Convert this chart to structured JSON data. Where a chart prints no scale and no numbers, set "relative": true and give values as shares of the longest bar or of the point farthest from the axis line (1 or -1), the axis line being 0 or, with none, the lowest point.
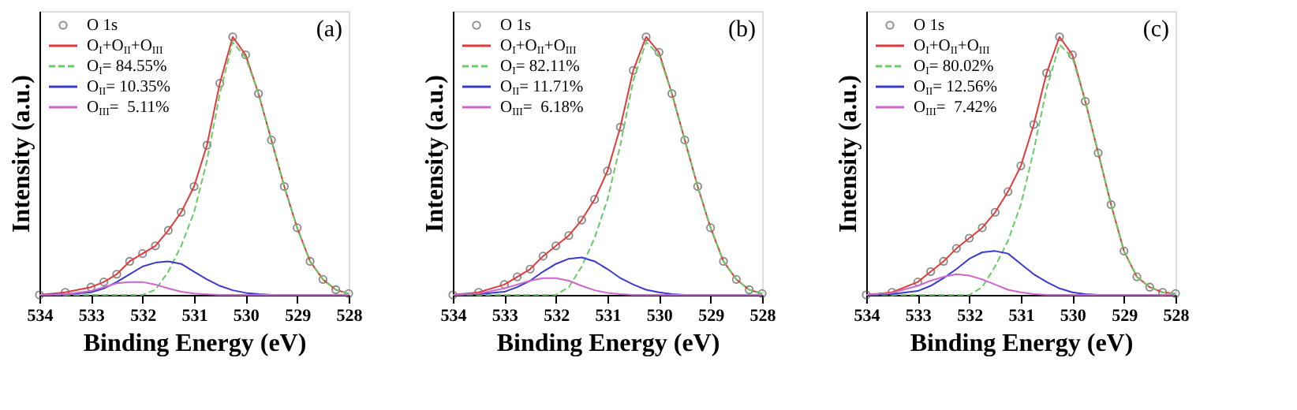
{
  "chart_data": [
    {
      "type": "line",
      "xlabel": "Binding Energy (eV)",
      "ylabel": "Intensity (a.u.)",
      "relative": true,
      "tick_labels": "x",
      "grid": false,
      "legend": "top left",
      "annotations": [
        "(a)"
      ],
      "x": [
        534,
        533.5,
        533,
        532.75,
        532.5,
        532.25,
        532,
        531.75,
        531.5,
        531.25,
        531,
        530.75,
        530.5,
        530.25,
        530,
        529.75,
        529.5,
        529.25,
        529,
        528.75,
        528.5,
        528.25,
        528
      ],
      "xlim": [
        534,
        528
      ],
      "xticks": [
        534,
        533,
        532,
        531,
        530,
        529,
        528
      ],
      "series": [
        {
          "name": "O 1s",
          "type": "scatter",
          "marker": "circle",
          "color": "#555555",
          "values": [
            0,
            0.01,
            0.03,
            0.05,
            0.08,
            0.13,
            0.16,
            0.19,
            0.25,
            0.32,
            0.42,
            0.58,
            0.82,
            1.0,
            0.93,
            0.78,
            0.6,
            0.42,
            0.26,
            0.13,
            0.06,
            0.02,
            0.005
          ]
        },
        {
          "name": "O$_{I}$+O$_{II}$+O$_{III}$",
          "line_style": "solid",
          "color": "#e03a3a",
          "values": [
            0,
            0.01,
            0.03,
            0.05,
            0.08,
            0.13,
            0.16,
            0.19,
            0.25,
            0.32,
            0.42,
            0.58,
            0.82,
            1.0,
            0.93,
            0.78,
            0.6,
            0.42,
            0.26,
            0.13,
            0.06,
            0.02,
            0.005
          ]
        },
        {
          "name": "O$_{I}$= 84.55%",
          "line_style": "dashed",
          "color": "#66cc66",
          "values": [
            0,
            0,
            0,
            0,
            0,
            0,
            0,
            0.02,
            0.09,
            0.19,
            0.32,
            0.52,
            0.78,
            0.98,
            0.92,
            0.78,
            0.6,
            0.42,
            0.26,
            0.13,
            0.06,
            0.02,
            0.005
          ]
        },
        {
          "name": "O$_{II}$= 10.35%",
          "line_style": "solid",
          "color": "#3a3acc",
          "values": [
            0,
            0.002,
            0.01,
            0.025,
            0.05,
            0.08,
            0.11,
            0.125,
            0.13,
            0.12,
            0.09,
            0.06,
            0.035,
            0.018,
            0.008,
            0.003,
            0,
            null,
            null,
            null,
            null,
            null,
            null
          ]
        },
        {
          "name": "O$_{III}$=  5.11%",
          "line_style": "solid",
          "color": "#cc66cc",
          "values": [
            0,
            0.002,
            0.015,
            0.03,
            0.045,
            0.05,
            0.05,
            0.04,
            0.025,
            0.012,
            0.005,
            0.002,
            0,
            0,
            0,
            0,
            0,
            0,
            0,
            0,
            0,
            0,
            0
          ]
        }
      ]
    },
    {
      "type": "line",
      "xlabel": "Binding Energy (eV)",
      "ylabel": "Intensity (a.u.)",
      "relative": true,
      "tick_labels": "x",
      "grid": false,
      "legend": "top left",
      "annotations": [
        "(b)"
      ],
      "x": [
        534,
        533.5,
        533,
        532.75,
        532.5,
        532.25,
        532,
        531.75,
        531.5,
        531.25,
        531,
        530.75,
        530.5,
        530.25,
        530,
        529.75,
        529.5,
        529.25,
        529,
        528.75,
        528.5,
        528.25,
        528
      ],
      "xlim": [
        534,
        528
      ],
      "xticks": [
        534,
        533,
        532,
        531,
        530,
        529,
        528
      ],
      "series": [
        {
          "name": "O 1s",
          "type": "scatter",
          "marker": "circle",
          "color": "#555555",
          "values": [
            0,
            0.01,
            0.04,
            0.07,
            0.1,
            0.15,
            0.19,
            0.23,
            0.29,
            0.37,
            0.48,
            0.65,
            0.87,
            1.0,
            0.94,
            0.78,
            0.6,
            0.42,
            0.26,
            0.13,
            0.06,
            0.02,
            0.005
          ]
        },
        {
          "name": "O$_{I}$+O$_{II}$+O$_{III}$",
          "line_style": "solid",
          "color": "#e03a3a",
          "values": [
            0,
            0.01,
            0.04,
            0.07,
            0.1,
            0.15,
            0.19,
            0.23,
            0.29,
            0.37,
            0.48,
            0.65,
            0.87,
            1.0,
            0.94,
            0.78,
            0.6,
            0.42,
            0.26,
            0.13,
            0.06,
            0.02,
            0.005
          ]
        },
        {
          "name": "O$_{I}$= 82.11%",
          "line_style": "dashed",
          "color": "#66cc66",
          "values": [
            0,
            0,
            0,
            0,
            0,
            0,
            0,
            0.03,
            0.11,
            0.22,
            0.37,
            0.58,
            0.83,
            0.98,
            0.93,
            0.78,
            0.6,
            0.42,
            0.26,
            0.13,
            0.06,
            0.02,
            0.005
          ]
        },
        {
          "name": "O$_{II}$= 11.71%",
          "line_style": "solid",
          "color": "#3a3acc",
          "values": [
            0,
            0.003,
            0.012,
            0.03,
            0.055,
            0.09,
            0.12,
            0.14,
            0.145,
            0.13,
            0.1,
            0.065,
            0.04,
            0.02,
            0.01,
            0.003,
            0,
            null,
            null,
            null,
            null,
            null,
            null
          ]
        },
        {
          "name": "O$_{III}$=  6.18%",
          "line_style": "solid",
          "color": "#cc66cc",
          "values": [
            0,
            0.005,
            0.025,
            0.04,
            0.055,
            0.065,
            0.065,
            0.055,
            0.035,
            0.018,
            0.008,
            0.003,
            0,
            0,
            0,
            0,
            0,
            0,
            0,
            0,
            0,
            0,
            0
          ]
        }
      ]
    },
    {
      "type": "line",
      "xlabel": "Binding Energy (eV)",
      "ylabel": "Intensity (a.u.)",
      "relative": true,
      "tick_labels": "x",
      "grid": false,
      "legend": "top left",
      "annotations": [
        "(c)"
      ],
      "x": [
        534,
        533.5,
        533,
        532.75,
        532.5,
        532.25,
        532,
        531.75,
        531.5,
        531.25,
        531,
        530.75,
        530.5,
        530.25,
        530,
        529.75,
        529.5,
        529.25,
        529,
        528.75,
        528.5,
        528.25,
        528
      ],
      "xlim": [
        534,
        528
      ],
      "xticks": [
        534,
        533,
        532,
        531,
        530,
        529,
        528
      ],
      "series": [
        {
          "name": "O 1s",
          "type": "scatter",
          "marker": "circle",
          "color": "#555555",
          "values": [
            0,
            0.01,
            0.05,
            0.09,
            0.13,
            0.18,
            0.22,
            0.26,
            0.32,
            0.4,
            0.5,
            0.66,
            0.86,
            1.0,
            0.93,
            0.75,
            0.55,
            0.35,
            0.17,
            0.07,
            0.03,
            0.01,
            0.005
          ]
        },
        {
          "name": "O$_{I}$+O$_{II}$+O$_{III}$",
          "line_style": "solid",
          "color": "#e03a3a",
          "values": [
            0,
            0.01,
            0.05,
            0.09,
            0.13,
            0.18,
            0.22,
            0.26,
            0.32,
            0.4,
            0.5,
            0.66,
            0.86,
            1.0,
            0.93,
            0.75,
            0.55,
            0.35,
            0.17,
            0.07,
            0.03,
            0.01,
            0.005
          ]
        },
        {
          "name": "O$_{I}$= 80.02%",
          "line_style": "dashed",
          "color": "#66cc66",
          "values": [
            0,
            0,
            0,
            0,
            0,
            0,
            0,
            0.03,
            0.11,
            0.21,
            0.35,
            0.56,
            0.8,
            0.97,
            0.92,
            0.75,
            0.55,
            0.35,
            0.17,
            0.07,
            0.03,
            0.01,
            0.005
          ]
        },
        {
          "name": "O$_{II}$= 12.56%",
          "line_style": "solid",
          "color": "#3a3acc",
          "values": [
            0,
            0.003,
            0.015,
            0.035,
            0.065,
            0.1,
            0.14,
            0.165,
            0.17,
            0.16,
            0.12,
            0.08,
            0.05,
            0.025,
            0.01,
            0.003,
            0,
            null,
            null,
            null,
            null,
            null,
            null
          ]
        },
        {
          "name": "O$_{III}$=  7.42%",
          "line_style": "solid",
          "color": "#cc66cc",
          "values": [
            0,
            0.008,
            0.035,
            0.055,
            0.07,
            0.08,
            0.075,
            0.06,
            0.04,
            0.02,
            0.01,
            0.003,
            0,
            0,
            0,
            0,
            0,
            0,
            0,
            0,
            0,
            0,
            0
          ]
        }
      ]
    }
  ]
}
